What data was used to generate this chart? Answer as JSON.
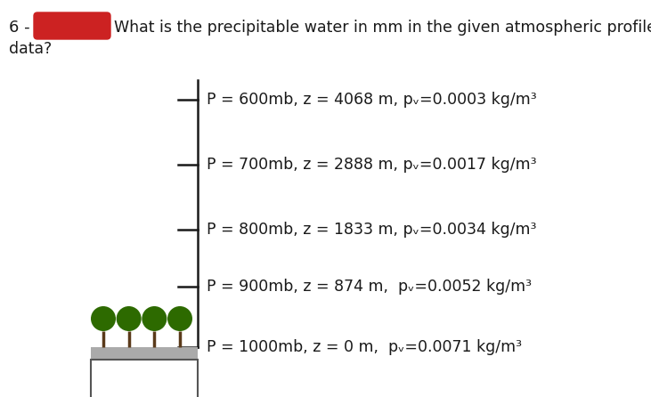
{
  "bg_color": "#ffffff",
  "red_box_color": "#CC2222",
  "line_color": "#1a1a1a",
  "tree_color": "#2d6a00",
  "trunk_color": "#5a3a1a",
  "ground_color": "#aaaaaa",
  "text_color": "#1a1a1a",
  "title_line1": "What is the precipitable water in mm in the given atmospheric profile",
  "title_line2": "data?",
  "number_text": "6 -",
  "levels": [
    {
      "label": "P = 600mb, z = 4068 m, pᵥ=0.0003 kg/m³"
    },
    {
      "label": "P = 700mb, z = 2888 m, pᵥ=0.0017 kg/m³"
    },
    {
      "label": "P = 800mb, z = 1833 m, pᵥ=0.0034 kg/m³"
    },
    {
      "label": "P = 900mb, z = 874 m,  pᵥ=0.0052 kg/m³"
    },
    {
      "label": "P = 1000mb, z = 0 m,  pᵥ=0.0071 kg/m³"
    }
  ],
  "figsize": [
    7.31,
    4.46
  ],
  "dpi": 100
}
